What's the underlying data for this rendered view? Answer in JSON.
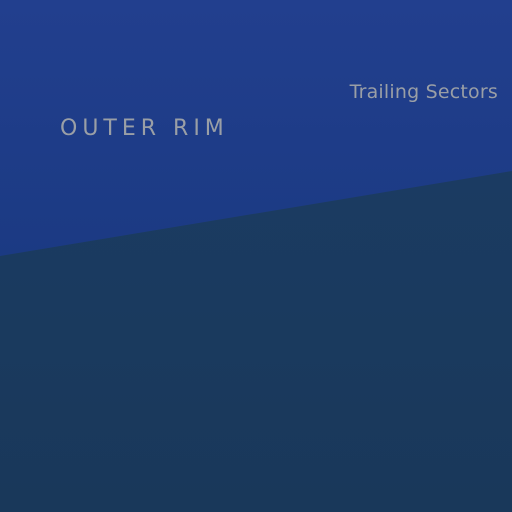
{
  "regions": [
    {
      "id": "outer-rim",
      "label": "OUTER RIM",
      "color": "#1f3d8a"
    },
    {
      "id": "trailing-sectors",
      "label": "Trailing Sectors",
      "color": "#1a3a5e"
    }
  ],
  "label_color": "#9a9fa6"
}
